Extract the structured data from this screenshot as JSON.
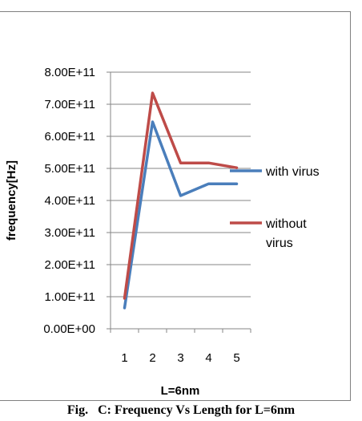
{
  "chart_data": {
    "type": "line",
    "x": [
      1,
      2,
      3,
      4,
      5
    ],
    "categories": [
      "1",
      "2",
      "3",
      "4",
      "5"
    ],
    "xlabel": "L=6nm",
    "ylabel": "frequency[Hz]",
    "ylim": [
      0,
      800000000000
    ],
    "yticks": [
      0,
      100000000000,
      200000000000,
      300000000000,
      400000000000,
      500000000000,
      600000000000,
      700000000000,
      800000000000
    ],
    "ytick_labels": [
      "0.00E+00",
      "1.00E+11",
      "2.00E+11",
      "3.00E+11",
      "4.00E+11",
      "5.00E+11",
      "6.00E+11",
      "7.00E+11",
      "8.00E+11"
    ],
    "grid": "horizontal",
    "legend_position": "right",
    "series": [
      {
        "name": "with virus",
        "legend_lines": [
          "with virus"
        ],
        "color": "#4a7ebb",
        "values": [
          65000000000,
          645000000000,
          415000000000,
          452000000000,
          452000000000
        ]
      },
      {
        "name": "without virus",
        "legend_lines": [
          "without",
          "virus"
        ],
        "color": "#be4b48",
        "values": [
          95000000000,
          735000000000,
          517000000000,
          517000000000,
          502000000000
        ]
      }
    ]
  },
  "caption": "Fig.   C: Frequency Vs Length for L=6nm"
}
